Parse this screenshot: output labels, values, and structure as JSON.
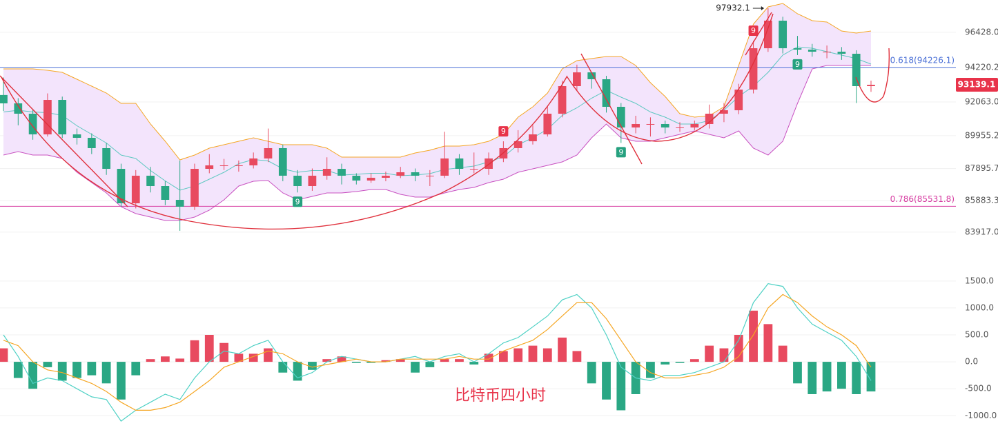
{
  "chart_data": [
    {
      "type": "candlestick",
      "open": [
        92500,
        91977,
        91330,
        90035,
        92192,
        90035,
        89820,
        89173,
        87878,
        85721,
        87447,
        86800,
        85937,
        85506,
        87878,
        88094,
        88094,
        88094,
        88526,
        89173,
        87447,
        86800,
        87447,
        87878,
        87447,
        87145,
        87318,
        87447,
        87663,
        87447,
        87447,
        88526,
        87878,
        87878,
        88526,
        89173,
        89604,
        90035,
        91330,
        93055,
        93918,
        93487,
        91761,
        90467,
        90683,
        90683,
        90467,
        90467,
        90683,
        91330,
        91545,
        92840,
        95428,
        97154,
        95428,
        95342,
        95212,
        95212,
        95083,
        93055
      ],
      "high": [
        93600,
        92300,
        91600,
        92600,
        92400,
        90400,
        90100,
        89500,
        88200,
        87800,
        88000,
        87100,
        88400,
        88200,
        88800,
        88500,
        88400,
        88900,
        90400,
        89400,
        87800,
        87900,
        88600,
        88200,
        87600,
        87600,
        87700,
        88000,
        87900,
        87800,
        90200,
        88800,
        88900,
        88900,
        89600,
        90300,
        90600,
        91800,
        93400,
        94400,
        93900,
        93700,
        92000,
        91200,
        91100,
        90900,
        90800,
        90900,
        91900,
        92000,
        93200,
        95900,
        97932,
        97400,
        96200,
        95700,
        95600,
        95500,
        95300,
        93400
      ],
      "low": [
        91500,
        90600,
        89700,
        89900,
        89800,
        89400,
        88800,
        87500,
        85500,
        85400,
        86400,
        85600,
        84000,
        85300,
        87600,
        87800,
        87700,
        87900,
        88300,
        87100,
        86400,
        86500,
        87200,
        86900,
        86900,
        87000,
        87100,
        87300,
        87100,
        86800,
        87300,
        87500,
        87600,
        87500,
        88300,
        88900,
        89400,
        89900,
        91100,
        92800,
        92900,
        91400,
        89500,
        90100,
        89900,
        90100,
        90200,
        90300,
        90400,
        90800,
        91300,
        92600,
        95200,
        95100,
        95000,
        94900,
        94800,
        94700,
        92000,
        92700
      ],
      "close": [
        91977,
        91330,
        90035,
        92192,
        90035,
        89820,
        89173,
        87878,
        85721,
        87447,
        86800,
        85937,
        85506,
        87878,
        88094,
        88094,
        88094,
        88526,
        89173,
        87447,
        86800,
        87447,
        87878,
        87447,
        87145,
        87318,
        87447,
        87663,
        87447,
        87447,
        88526,
        87878,
        87878,
        88526,
        89173,
        89604,
        90035,
        91330,
        93055,
        93918,
        93487,
        91761,
        90467,
        90683,
        90683,
        90467,
        90467,
        90683,
        91330,
        91545,
        92840,
        95428,
        97154,
        95428,
        95342,
        95212,
        95212,
        95083,
        93055,
        93139
      ],
      "up_color": "#e84a5f",
      "down_color": "#2aa784",
      "bollinger": {
        "upper": [
          94134,
          94134,
          94134,
          94047,
          93918,
          93487,
          93055,
          92624,
          91977,
          91977,
          90683,
          89604,
          88439,
          88741,
          89173,
          89388,
          89604,
          89820,
          89604,
          89388,
          89388,
          89388,
          89173,
          88612,
          88612,
          88612,
          88612,
          88612,
          88871,
          89043,
          89302,
          89302,
          89388,
          89604,
          90035,
          91114,
          91761,
          92624,
          94134,
          94651,
          94781,
          94910,
          94910,
          94349,
          93271,
          92408,
          91330,
          91114,
          91200,
          91761,
          94349,
          96938,
          98016,
          98232,
          97585,
          97154,
          97067,
          96506,
          96377,
          96506
        ],
        "middle": [
          91438,
          91546,
          91438,
          91394,
          91222,
          90575,
          90036,
          89497,
          88742,
          88526,
          87771,
          87124,
          86541,
          86800,
          87232,
          87663,
          88202,
          88461,
          88375,
          87879,
          87663,
          87771,
          87771,
          87491,
          87534,
          87598,
          87598,
          87447,
          87491,
          87577,
          87836,
          87943,
          88051,
          88310,
          88633,
          89389,
          89820,
          90359,
          91222,
          91696,
          92301,
          92797,
          92365,
          91977,
          91438,
          91114,
          90683,
          90683,
          90900,
          91545,
          92408,
          93055,
          93918,
          95000,
          95514,
          95428,
          95212,
          94997,
          94781,
          94435
        ],
        "lower": [
          88741,
          88957,
          88741,
          88741,
          88526,
          87663,
          87016,
          86369,
          85506,
          85074,
          84859,
          84643,
          84643,
          84859,
          85290,
          85937,
          86800,
          87102,
          87145,
          86369,
          85937,
          86153,
          86369,
          86369,
          86455,
          86584,
          86584,
          86282,
          86110,
          86110,
          86369,
          86584,
          86714,
          87016,
          87231,
          87663,
          87878,
          88094,
          88310,
          88741,
          89820,
          90683,
          89820,
          89604,
          89604,
          89820,
          90035,
          90251,
          90035,
          89820,
          90251,
          89173,
          88741,
          89604,
          91977,
          94134,
          94349,
          94349,
          94349,
          94349
        ],
        "upper_color": "#f5a623",
        "middle_color": "#5cc8c0",
        "lower_color": "#c850c0",
        "fill": "#f3e4fc"
      },
      "ylim": [
        81623,
        98448
      ],
      "yticks": [
        {
          "value": 83917,
          "label": "83917.0"
        },
        {
          "value": 85883.3,
          "label": "85883.3"
        },
        {
          "value": 87895.7,
          "label": "87895.7"
        },
        {
          "value": 89955.2,
          "label": "89955.2"
        },
        {
          "value": 92063,
          "label": "92063.0"
        },
        {
          "value": 94220.2,
          "label": "94220.2"
        },
        {
          "value": 96428,
          "label": "96428.0"
        }
      ],
      "grid": true,
      "fib_levels": [
        {
          "label": "0.618(94226.1)",
          "value": 94226.1,
          "color": "#4a6fd6"
        },
        {
          "label": "0.786(85531.8)",
          "value": 85531.8,
          "color": "#d63aa0"
        }
      ],
      "last_price": 93139.1,
      "last_price_color": "#e8334a",
      "max_label": 97932.1,
      "markers": [
        {
          "label": "9",
          "index": 20,
          "color": "#26a17f",
          "position": "below"
        },
        {
          "label": "9",
          "index": 34,
          "color": "#e8334a",
          "position": "above"
        },
        {
          "label": "9",
          "index": 42,
          "color": "#26a17f",
          "position": "below"
        },
        {
          "label": "9",
          "index": 51,
          "color": "#e8334a",
          "position": "above"
        },
        {
          "label": "9",
          "index": 54,
          "color": "#26a17f",
          "position": "below"
        }
      ]
    },
    {
      "type": "macd",
      "title": "比特币四小时",
      "title_color": "#e8334a",
      "histogram": [
        250,
        -300,
        -500,
        -100,
        -350,
        -300,
        -250,
        -400,
        -700,
        -250,
        50,
        100,
        60,
        400,
        500,
        350,
        150,
        150,
        250,
        -200,
        -350,
        -150,
        50,
        100,
        -20,
        -20,
        30,
        50,
        -200,
        -100,
        50,
        50,
        -50,
        150,
        200,
        250,
        300,
        250,
        450,
        200,
        -400,
        -700,
        -900,
        -600,
        -300,
        -50,
        -20,
        50,
        300,
        250,
        500,
        950,
        700,
        300,
        -400,
        -600,
        -550,
        -500,
        -600,
        -550
      ],
      "dif": [
        500,
        100,
        -400,
        -300,
        -350,
        -500,
        -650,
        -700,
        -1100,
        -900,
        -750,
        -600,
        -700,
        -300,
        0,
        200,
        150,
        300,
        400,
        0,
        -300,
        -200,
        0,
        100,
        50,
        0,
        0,
        50,
        100,
        0,
        100,
        150,
        0,
        150,
        350,
        450,
        650,
        850,
        1150,
        1250,
        1000,
        500,
        -100,
        -300,
        -350,
        -250,
        -250,
        -200,
        -100,
        0,
        400,
        1100,
        1450,
        1400,
        1000,
        700,
        550,
        400,
        100,
        -350
      ],
      "dea": [
        400,
        300,
        0,
        -150,
        -200,
        -300,
        -400,
        -550,
        -750,
        -900,
        -900,
        -850,
        -750,
        -550,
        -350,
        -100,
        0,
        100,
        200,
        150,
        0,
        -100,
        -50,
        0,
        50,
        0,
        0,
        50,
        50,
        50,
        50,
        100,
        50,
        50,
        200,
        300,
        400,
        600,
        850,
        1100,
        1100,
        800,
        400,
        0,
        -200,
        -300,
        -300,
        -250,
        -200,
        -100,
        100,
        500,
        1000,
        1250,
        1100,
        850,
        650,
        500,
        300,
        -100
      ],
      "up_color": "#e84a5f",
      "down_color": "#2aa784",
      "dif_color": "#4fd1c5",
      "dea_color": "#f5a623",
      "ylim": [
        -1470,
        1600
      ],
      "yticks": [
        {
          "value": -1000,
          "label": "-1000.0"
        },
        {
          "value": -500,
          "label": "-500.0"
        },
        {
          "value": 0,
          "label": "0.0"
        },
        {
          "value": 500,
          "label": "500.0"
        },
        {
          "value": 1000,
          "label": "1000.0"
        },
        {
          "value": 1500,
          "label": "1500.0"
        }
      ],
      "grid": true
    }
  ]
}
